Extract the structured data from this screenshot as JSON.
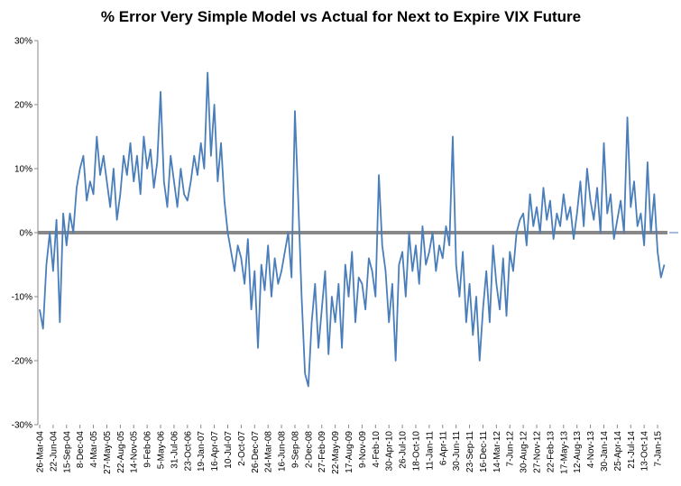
{
  "chart_data": {
    "type": "line",
    "title": "% Error Very Simple Model vs Actual for Next to Expire VIX Future",
    "categories": [
      "26-Mar-04",
      null,
      null,
      null,
      "22-Jun-04",
      null,
      null,
      null,
      "15-Sep-04",
      null,
      null,
      null,
      "8-Dec-04",
      null,
      null,
      null,
      "4-Mar-05",
      null,
      null,
      null,
      "27-May-05",
      null,
      null,
      null,
      "22-Aug-05",
      null,
      null,
      null,
      "14-Nov-05",
      null,
      null,
      null,
      "9-Feb-06",
      null,
      null,
      null,
      "5-May-06",
      null,
      null,
      null,
      "31-Jul-06",
      null,
      null,
      null,
      "23-Oct-06",
      null,
      null,
      null,
      "19-Jan-07",
      null,
      null,
      null,
      "16-Apr-07",
      null,
      null,
      null,
      "10-Jul-07",
      null,
      null,
      null,
      "2-Oct-07",
      null,
      null,
      null,
      "26-Dec-07",
      null,
      null,
      null,
      "24-Mar-08",
      null,
      null,
      null,
      "16-Jun-08",
      null,
      null,
      null,
      "9-Sep-08",
      null,
      null,
      null,
      "2-Dec-08",
      null,
      null,
      null,
      "27-Feb-09",
      null,
      null,
      null,
      "22-May-09",
      null,
      null,
      null,
      "17-Aug-09",
      null,
      null,
      null,
      "9-Nov-09",
      null,
      null,
      null,
      "4-Feb-10",
      null,
      null,
      null,
      "30-Apr-10",
      null,
      null,
      null,
      "26-Jul-10",
      null,
      null,
      null,
      "18-Oct-10",
      null,
      null,
      null,
      "11-Jan-11",
      null,
      null,
      null,
      "6-Apr-11",
      null,
      null,
      null,
      "30-Jun-11",
      null,
      null,
      null,
      "23-Sep-11",
      null,
      null,
      null,
      "16-Dec-11",
      null,
      null,
      null,
      "14-Mar-12",
      null,
      null,
      null,
      "7-Jun-12",
      null,
      null,
      null,
      "30-Aug-12",
      null,
      null,
      null,
      "27-Nov-12",
      null,
      null,
      null,
      "22-Feb-13",
      null,
      null,
      null,
      "17-May-13",
      null,
      null,
      null,
      "12-Aug-13",
      null,
      null,
      null,
      "4-Nov-13",
      null,
      null,
      null,
      "30-Jan-14",
      null,
      null,
      null,
      "25-Apr-14",
      null,
      null,
      null,
      "21-Jul-14",
      null,
      null,
      null,
      "13-Oct-14",
      null,
      null,
      null,
      "7-Jan-15",
      null,
      null
    ],
    "series": [
      {
        "name": "% Error",
        "color": "#4a7ebb",
        "values": [
          -12,
          -15,
          -5,
          0,
          -6,
          2,
          -14,
          3,
          -2,
          3,
          0,
          7,
          10,
          12,
          5,
          8,
          6,
          15,
          9,
          12,
          8,
          4,
          10,
          2,
          6,
          12,
          9,
          14,
          8,
          12,
          6,
          15,
          10,
          13,
          7,
          11,
          22,
          8,
          4,
          12,
          8,
          4,
          10,
          6,
          5,
          8,
          12,
          9,
          14,
          10,
          25,
          12,
          20,
          8,
          14,
          5,
          0,
          -3,
          -6,
          -2,
          -4,
          -8,
          -1,
          -12,
          -6,
          -18,
          -5,
          -9,
          -2,
          -10,
          -4,
          -8,
          -6,
          -3,
          0,
          -7,
          19,
          5,
          -10,
          -22,
          -24,
          -14,
          -8,
          -18,
          -12,
          -6,
          -19,
          -10,
          -14,
          -8,
          -18,
          -5,
          -10,
          -3,
          -14,
          -7,
          -8,
          -12,
          -4,
          -6,
          -10,
          9,
          -2,
          -6,
          -14,
          -8,
          -20,
          -5,
          -3,
          -10,
          0,
          -6,
          -2,
          -8,
          1,
          -5,
          -3,
          0,
          -6,
          -2,
          -4,
          1,
          -2,
          15,
          -5,
          -10,
          -3,
          -14,
          -8,
          -16,
          -10,
          -20,
          -12,
          -6,
          -14,
          -2,
          -8,
          -12,
          -4,
          -13,
          -3,
          -6,
          0,
          2,
          3,
          -2,
          6,
          1,
          4,
          0,
          7,
          2,
          5,
          -1,
          3,
          1,
          6,
          2,
          4,
          -1,
          3,
          8,
          1,
          10,
          5,
          2,
          7,
          0,
          14,
          3,
          6,
          -1,
          2,
          5,
          0,
          18,
          4,
          8,
          1,
          3,
          -2,
          11,
          0,
          6,
          -3,
          -7,
          -5
        ]
      }
    ],
    "ylim": [
      -30,
      30
    ],
    "yticks": [
      {
        "value": -30,
        "label": "-30%"
      },
      {
        "value": -20,
        "label": "-20%"
      },
      {
        "value": -10,
        "label": "-10%"
      },
      {
        "value": 0,
        "label": "0%"
      },
      {
        "value": 10,
        "label": "10%"
      },
      {
        "value": 20,
        "label": "20%"
      },
      {
        "value": 30,
        "label": "30%"
      }
    ],
    "grid": false
  }
}
